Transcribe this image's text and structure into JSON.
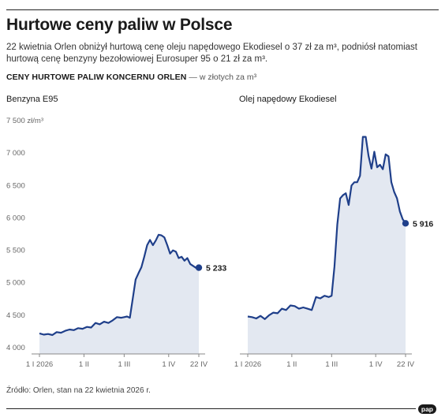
{
  "header": {
    "title": "Hurtowe ceny paliw w Polsce",
    "subtitle": "22 kwietnia Orlen obniżył hurtową cenę oleju napędowego Ekodiesel o 37 zł za m³, podniósł natomiast hurtową cenę benzyny bezołowiowej Eurosuper 95 o 21 zł za m³.",
    "section_title": "CENY HURTOWE PALIW KONCERNU ORLEN",
    "section_unit": " — w złotych za m³"
  },
  "footer": {
    "source": "Źródło: Orlen, stan na 22 kwietnia 2026 r.",
    "logo": "pap"
  },
  "chart_data": [
    {
      "type": "area",
      "title": "Benzyna E95",
      "ylim": [
        4000,
        7500
      ],
      "yticks": [
        4000,
        4500,
        5000,
        5500,
        6000,
        6500,
        7000,
        7500
      ],
      "ytick_labels": [
        "4 000",
        "4 500",
        "5 000",
        "5 500",
        "6 000",
        "6 500",
        "7 000",
        "7 500 zł/m³"
      ],
      "xlim": [
        1,
        112
      ],
      "xticks": [
        1,
        32,
        60,
        91,
        112
      ],
      "xtick_labels": [
        "1 I 2026",
        "1 II",
        "1 III",
        "1 IV",
        "22 IV"
      ],
      "grid": false,
      "end_label": "5 233",
      "x": [
        1,
        4,
        7,
        10,
        13,
        16,
        19,
        22,
        25,
        28,
        31,
        34,
        37,
        40,
        43,
        46,
        49,
        52,
        55,
        58,
        60,
        62,
        64,
        66,
        68,
        70,
        72,
        74,
        76,
        78,
        80,
        82,
        84,
        86,
        88,
        90,
        92,
        94,
        96,
        98,
        100,
        102,
        104,
        106,
        108,
        110,
        112
      ],
      "y": [
        4220,
        4200,
        4210,
        4195,
        4240,
        4230,
        4260,
        4280,
        4270,
        4300,
        4290,
        4320,
        4310,
        4380,
        4360,
        4400,
        4380,
        4420,
        4470,
        4460,
        4470,
        4480,
        4460,
        4760,
        5050,
        5150,
        5240,
        5400,
        5580,
        5660,
        5580,
        5650,
        5740,
        5730,
        5700,
        5580,
        5450,
        5500,
        5480,
        5380,
        5400,
        5340,
        5380,
        5290,
        5260,
        5230,
        5233
      ]
    },
    {
      "type": "area",
      "title": "Olej napędowy Ekodiesel",
      "ylim": [
        4000,
        7500
      ],
      "xlim": [
        1,
        112
      ],
      "xticks": [
        1,
        32,
        60,
        91,
        112
      ],
      "xtick_labels": [
        "1 I 2026",
        "1 II",
        "1 III",
        "1 IV",
        "22 IV"
      ],
      "grid": false,
      "end_label": "5 916",
      "x": [
        1,
        4,
        7,
        10,
        13,
        16,
        19,
        22,
        25,
        28,
        31,
        34,
        37,
        40,
        43,
        46,
        49,
        52,
        55,
        58,
        60,
        62,
        64,
        66,
        68,
        70,
        72,
        74,
        76,
        78,
        80,
        82,
        84,
        86,
        88,
        90,
        92,
        94,
        96,
        98,
        100,
        102,
        104,
        106,
        108,
        110,
        112
      ],
      "y": [
        4480,
        4470,
        4450,
        4490,
        4440,
        4500,
        4540,
        4530,
        4600,
        4580,
        4650,
        4640,
        4600,
        4620,
        4600,
        4580,
        4780,
        4760,
        4800,
        4780,
        4800,
        5250,
        5900,
        6300,
        6350,
        6380,
        6200,
        6500,
        6550,
        6550,
        6650,
        7250,
        7250,
        6950,
        6760,
        7020,
        6780,
        6820,
        6750,
        6980,
        6950,
        6550,
        6400,
        6300,
        6100,
        5980,
        5916
      ]
    }
  ]
}
